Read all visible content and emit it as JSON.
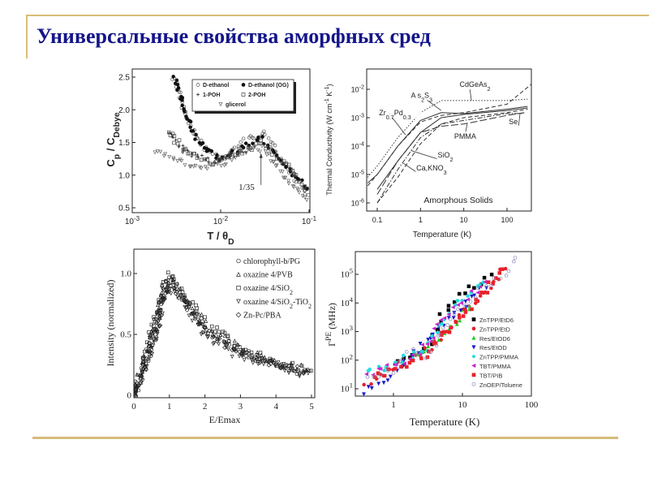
{
  "slide": {
    "title": "Универсальные свойства аморфных сред"
  },
  "colors": {
    "title": "#14148a",
    "rule": "#d9bd73"
  },
  "chart_data": [
    {
      "type": "scatter",
      "title": "",
      "xlabel": "T / θ_{D}",
      "ylabel": "C_{p} / C_{Debye}",
      "xscale": "log",
      "xlim": [
        0.001,
        0.1
      ],
      "ylim": [
        0.5,
        2.6
      ],
      "xticks": [
        {
          "v": 0.001,
          "label": "10^{-3}"
        },
        {
          "v": 0.01,
          "label": "10^{-2}"
        },
        {
          "v": 0.1,
          "label": "10^{-1}"
        }
      ],
      "yticks": [
        {
          "v": 0.5,
          "label": "0.5"
        },
        {
          "v": 1.0,
          "label": "1.0"
        },
        {
          "v": 1.5,
          "label": "1.5"
        },
        {
          "v": 2.0,
          "label": "2.0"
        },
        {
          "v": 2.5,
          "label": "2.5"
        }
      ],
      "legend_position": "top-right",
      "series": [
        {
          "name": "D-ethanol",
          "marker": "circle-open",
          "color": "#555555",
          "x": [
            0.003,
            0.004,
            0.006,
            0.01,
            0.02,
            0.03,
            0.05,
            0.1
          ],
          "y": [
            2.5,
            1.9,
            1.45,
            1.25,
            1.55,
            1.65,
            1.25,
            0.65
          ]
        },
        {
          "name": "D-ethanol (OG)",
          "marker": "circle-filled",
          "color": "#111111",
          "x": [
            0.003,
            0.004,
            0.006,
            0.01,
            0.02,
            0.03,
            0.05,
            0.1
          ],
          "y": [
            2.5,
            1.9,
            1.45,
            1.25,
            1.45,
            1.55,
            1.2,
            0.75
          ]
        },
        {
          "name": "1-POH",
          "marker": "plus",
          "color": "#222222",
          "x": [
            0.0025,
            0.004,
            0.008,
            0.015,
            0.025
          ],
          "y": [
            1.65,
            1.35,
            1.2,
            1.3,
            1.45
          ]
        },
        {
          "name": "2-POH",
          "marker": "square-open",
          "color": "#444444",
          "x": [
            0.0025,
            0.004,
            0.008,
            0.015,
            0.03,
            0.06,
            0.1
          ],
          "y": [
            1.68,
            1.35,
            1.2,
            1.3,
            1.5,
            1.1,
            0.75
          ]
        },
        {
          "name": "glicerol",
          "marker": "triangle-down-open",
          "color": "#666666",
          "x": [
            0.0018,
            0.003,
            0.005,
            0.01,
            0.02,
            0.03,
            0.05,
            0.1
          ],
          "y": [
            1.37,
            1.25,
            1.1,
            1.15,
            1.4,
            1.4,
            1.0,
            0.6
          ]
        }
      ],
      "annotations": [
        {
          "text": "1/35",
          "x": 0.0286,
          "y": 0.8,
          "arrow_to_y": 1.35
        }
      ]
    },
    {
      "type": "line",
      "title": "",
      "xlabel": "Temperature (K)",
      "ylabel": "Thermal Conductivity (W cm^{-1} K^{-1})",
      "xscale": "log",
      "yscale": "log",
      "xlim": [
        0.05,
        500
      ],
      "ylim": [
        3e-07,
        0.05
      ],
      "xticks": [
        {
          "v": 0.1,
          "label": "0.1"
        },
        {
          "v": 1,
          "label": "1"
        },
        {
          "v": 10,
          "label": "10"
        },
        {
          "v": 100,
          "label": "100"
        }
      ],
      "yticks": [
        {
          "v": 1e-06,
          "label": "10^{-6}"
        },
        {
          "v": 1e-05,
          "label": "10^{-5}"
        },
        {
          "v": 0.0001,
          "label": "10^{-4}"
        },
        {
          "v": 0.001,
          "label": "10^{-3}"
        },
        {
          "v": 0.01,
          "label": "10^{-2}"
        }
      ],
      "inset_label": "Amorphous Solids",
      "series": [
        {
          "name": "CdGeAs_{2}",
          "style": "dashed",
          "x": [
            0.06,
            0.1,
            0.3,
            1,
            3,
            10,
            100,
            500
          ],
          "y": [
            4e-06,
            1e-05,
            0.0001,
            0.0007,
            0.0012,
            0.0015,
            0.003,
            0.015
          ]
        },
        {
          "name": "A s_{2}S_{3}",
          "style": "dotted",
          "x": [
            0.06,
            0.1,
            0.3,
            1,
            3,
            10,
            100,
            300
          ],
          "y": [
            8e-06,
            2e-05,
            0.0002,
            0.0015,
            0.004,
            0.004,
            0.004,
            0.0045
          ]
        },
        {
          "name": "Zr_{0.7}Pd_{0.3}",
          "style": "solid",
          "x": [
            0.06,
            0.1,
            0.3,
            1,
            3,
            10,
            100,
            300
          ],
          "y": [
            5e-06,
            1e-05,
            0.0001,
            0.0008,
            0.0015,
            0.0014,
            0.002,
            0.0025
          ]
        },
        {
          "name": "PMMA",
          "style": "long-dash",
          "x": [
            0.1,
            0.3,
            1,
            3,
            10,
            100,
            250
          ],
          "y": [
            2e-06,
            3e-05,
            0.0003,
            0.0005,
            0.0006,
            0.0012,
            0.0015
          ]
        },
        {
          "name": "Se",
          "style": "dash-dot",
          "x": [
            0.1,
            0.3,
            1,
            3,
            10,
            100,
            250
          ],
          "y": [
            1e-06,
            1.5e-05,
            0.0002,
            0.0006,
            0.0008,
            0.0014,
            0.0014
          ]
        },
        {
          "name": "SiO_{2}",
          "style": "solid",
          "x": [
            0.1,
            0.3,
            1,
            3,
            10,
            100,
            300
          ],
          "y": [
            3e-06,
            3e-05,
            0.0003,
            0.001,
            0.0013,
            0.0018,
            0.0022
          ]
        },
        {
          "name": "Ca,KNO_{3}",
          "style": "dashed",
          "x": [
            0.1,
            0.3,
            1,
            3,
            10,
            100,
            300
          ],
          "y": [
            1e-06,
            8e-06,
            0.00012,
            0.0006,
            0.001,
            0.0015,
            0.002
          ]
        }
      ],
      "annotations": [
        {
          "text": "CdGeAs_{2}",
          "x": 8,
          "y": 0.012,
          "tx": 15,
          "ty": 0.004
        },
        {
          "text": "A s_{2}S_{3}",
          "x": 0.6,
          "y": 0.005,
          "tx": 3,
          "ty": 0.0018
        },
        {
          "text": "Zr_{0.7}Pd_{0.3}",
          "x": 0.11,
          "y": 0.0012,
          "tx": 0.45,
          "ty": 0.00025
        },
        {
          "text": "Se",
          "x": 110,
          "y": 0.0006,
          "tx": 200,
          "ty": 0.0014
        },
        {
          "text": "PMMA",
          "x": 6,
          "y": 0.00018,
          "tx": 12,
          "ty": 0.0006
        },
        {
          "text": "SiO_{2}",
          "x": 2.5,
          "y": 4e-05,
          "tx": 0.6,
          "ty": 7e-05
        },
        {
          "text": "Ca,KNO_{3}",
          "x": 0.8,
          "y": 1.4e-05,
          "tx": 0.4,
          "ty": 2.5e-05
        }
      ]
    },
    {
      "type": "scatter",
      "title": "",
      "xlabel": "E/Emax",
      "ylabel": "Intensity (normalized)",
      "xlim": [
        0,
        5.1
      ],
      "ylim": [
        0,
        1.2
      ],
      "xticks": [
        {
          "v": 0,
          "label": "0"
        },
        {
          "v": 1,
          "label": "1"
        },
        {
          "v": 2,
          "label": "2"
        },
        {
          "v": 3,
          "label": "3"
        },
        {
          "v": 4,
          "label": "4"
        },
        {
          "v": 5,
          "label": "5"
        }
      ],
      "yticks": [
        {
          "v": 0,
          "label": "0"
        },
        {
          "v": 0.5,
          "label": "0.5"
        },
        {
          "v": 1.0,
          "label": "1.0"
        }
      ],
      "legend_position": "top-right",
      "series": [
        {
          "name": "chlorophyll-b/PG",
          "marker": "circle-open",
          "color": "#222222",
          "x": [
            0,
            0.3,
            0.6,
            0.9,
            1.0,
            1.5,
            2,
            3,
            4,
            5
          ],
          "y": [
            0,
            0.25,
            0.55,
            0.9,
            0.95,
            0.75,
            0.55,
            0.35,
            0.25,
            0.18
          ]
        },
        {
          "name": "oxazine 4/PVB",
          "marker": "triangle-up-open",
          "color": "#222222",
          "x": [
            0,
            0.3,
            0.6,
            0.9,
            1.0,
            1.5,
            2,
            3,
            4,
            5
          ],
          "y": [
            0.02,
            0.27,
            0.57,
            0.92,
            0.96,
            0.78,
            0.57,
            0.37,
            0.26,
            0.2
          ]
        },
        {
          "name": "oxazine 4/SiO_{2}",
          "marker": "square-open",
          "color": "#222222",
          "x": [
            0,
            0.3,
            0.6,
            0.9,
            1.0,
            1.5,
            2,
            3,
            4,
            5
          ],
          "y": [
            0,
            0.3,
            0.6,
            0.93,
            1.0,
            0.8,
            0.6,
            0.38,
            0.27,
            0.19
          ]
        },
        {
          "name": "oxazine 4/SiO_{2}-TiO_{2}",
          "marker": "triangle-down-open",
          "color": "#222222",
          "x": [
            0,
            0.3,
            0.6,
            0.9,
            1.0,
            1.5,
            2,
            3,
            4,
            5
          ],
          "y": [
            0,
            0.22,
            0.5,
            0.85,
            0.9,
            0.7,
            0.5,
            0.32,
            0.24,
            0.16
          ]
        },
        {
          "name": "Zn-Pc/PBA",
          "marker": "diamond-open",
          "color": "#222222",
          "x": [
            0,
            0.3,
            0.6,
            0.9,
            1.0,
            1.5,
            2,
            3,
            4,
            5
          ],
          "y": [
            0.01,
            0.24,
            0.53,
            0.88,
            0.93,
            0.74,
            0.54,
            0.34,
            0.25,
            0.18
          ]
        }
      ]
    },
    {
      "type": "scatter",
      "title": "",
      "xlabel": "Temperature  (K)",
      "ylabel": "Γ^{PE} (MHz)",
      "xscale": "log",
      "yscale": "log",
      "xlim": [
        0.28,
        100
      ],
      "ylim": [
        6,
        600000.0
      ],
      "xticks": [
        {
          "v": 1,
          "label": "1"
        },
        {
          "v": 10,
          "label": "10"
        },
        {
          "v": 100,
          "label": "100"
        }
      ],
      "yticks": [
        {
          "v": 10,
          "label": "10^{1}"
        },
        {
          "v": 100,
          "label": "10^{2}"
        },
        {
          "v": 1000,
          "label": "10^{3}"
        },
        {
          "v": 10000,
          "label": "10^{4}"
        },
        {
          "v": 100000,
          "label": "10^{5}"
        }
      ],
      "legend_position": "bottom-right",
      "series": [
        {
          "name": "ZnTPP/EtD6",
          "marker": "square-filled",
          "color": "#000000",
          "x": [
            1,
            2,
            3.5,
            5,
            8,
            15,
            30
          ],
          "y": [
            90,
            170,
            450,
            3500,
            12000,
            40000,
            120000
          ]
        },
        {
          "name": "ZnTPP/EtD",
          "marker": "circle-filled",
          "color": "#e8202a",
          "x": [
            0.4,
            1,
            2,
            3.5,
            6,
            10,
            20,
            45
          ],
          "y": [
            12,
            60,
            130,
            300,
            1200,
            5000,
            20000,
            250000
          ]
        },
        {
          "name": "Res/EtOD6",
          "marker": "triangle-up-filled",
          "color": "#22cc22",
          "x": [
            2,
            4,
            6,
            9,
            15
          ],
          "y": [
            150,
            400,
            1300,
            3000,
            15000
          ]
        },
        {
          "name": "Res/EtOD",
          "marker": "triangle-down-filled",
          "color": "#1a1acc",
          "x": [
            0.35,
            0.8,
            1.5,
            3,
            6,
            12,
            25
          ],
          "y": [
            8,
            20,
            90,
            400,
            2500,
            12000,
            60000
          ]
        },
        {
          "name": "ZnTPP/PMMA",
          "marker": "star",
          "color": "#22dddd",
          "x": [
            0.4,
            0.7,
            1.5,
            3,
            5,
            10,
            25
          ],
          "y": [
            50,
            55,
            120,
            250,
            2000,
            15000,
            90000
          ]
        },
        {
          "name": "TBT/PMMA",
          "marker": "triangle-left-filled",
          "color": "#cc22cc",
          "x": [
            0.4,
            1,
            2,
            3.5,
            5,
            10,
            25
          ],
          "y": [
            30,
            60,
            160,
            450,
            2500,
            12000,
            60000
          ]
        },
        {
          "name": "TBT/PIB",
          "marker": "square-filled",
          "color": "#e8202a",
          "x": [
            0.5,
            1.2,
            3,
            6,
            10,
            20,
            45
          ],
          "y": [
            25,
            60,
            150,
            1200,
            4000,
            20000,
            250000
          ]
        },
        {
          "name": "ZnOEP/Toluene",
          "marker": "circle-open",
          "color": "#8888bb",
          "x": [
            0.4,
            1,
            1.8,
            3,
            6,
            15,
            40,
            70
          ],
          "y": [
            20,
            40,
            300,
            100,
            2000,
            20000,
            100000,
            500000
          ]
        }
      ]
    }
  ]
}
